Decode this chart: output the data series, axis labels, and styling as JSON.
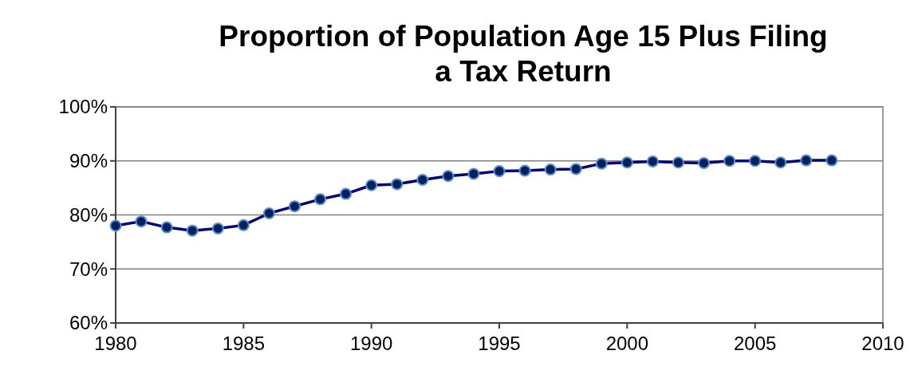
{
  "chart_data": {
    "type": "line",
    "title": "Proportion of Population Age 15 Plus Filing a Tax Return",
    "x": [
      1980,
      1981,
      1982,
      1983,
      1984,
      1985,
      1986,
      1987,
      1988,
      1989,
      1990,
      1991,
      1992,
      1993,
      1994,
      1995,
      1996,
      1997,
      1998,
      1999,
      2000,
      2001,
      2002,
      2003,
      2004,
      2005,
      2006,
      2007,
      2008
    ],
    "series": [
      {
        "color": "#000080",
        "values": [
          78.0,
          78.8,
          77.7,
          77.1,
          77.5,
          78.1,
          80.3,
          81.6,
          82.9,
          83.9,
          85.5,
          85.7,
          86.5,
          87.2,
          87.6,
          88.1,
          88.2,
          88.4,
          88.5,
          89.5,
          89.7,
          89.9,
          89.7,
          89.6,
          90.0,
          90.0,
          89.7,
          90.1,
          90.1
        ]
      }
    ],
    "xlim": [
      1980,
      2010
    ],
    "xticks": [
      1980,
      1985,
      1990,
      1995,
      2000,
      2005,
      2010
    ],
    "ylim": [
      60,
      100
    ],
    "yticks": [
      {
        "value": 60,
        "label": "60%"
      },
      {
        "value": 70,
        "label": "70%"
      },
      {
        "value": 80,
        "label": "80%"
      },
      {
        "value": 90,
        "label": "90%"
      },
      {
        "value": 100,
        "label": "100%"
      }
    ],
    "grid": "y",
    "marker": "circle",
    "line_style": "solid"
  }
}
